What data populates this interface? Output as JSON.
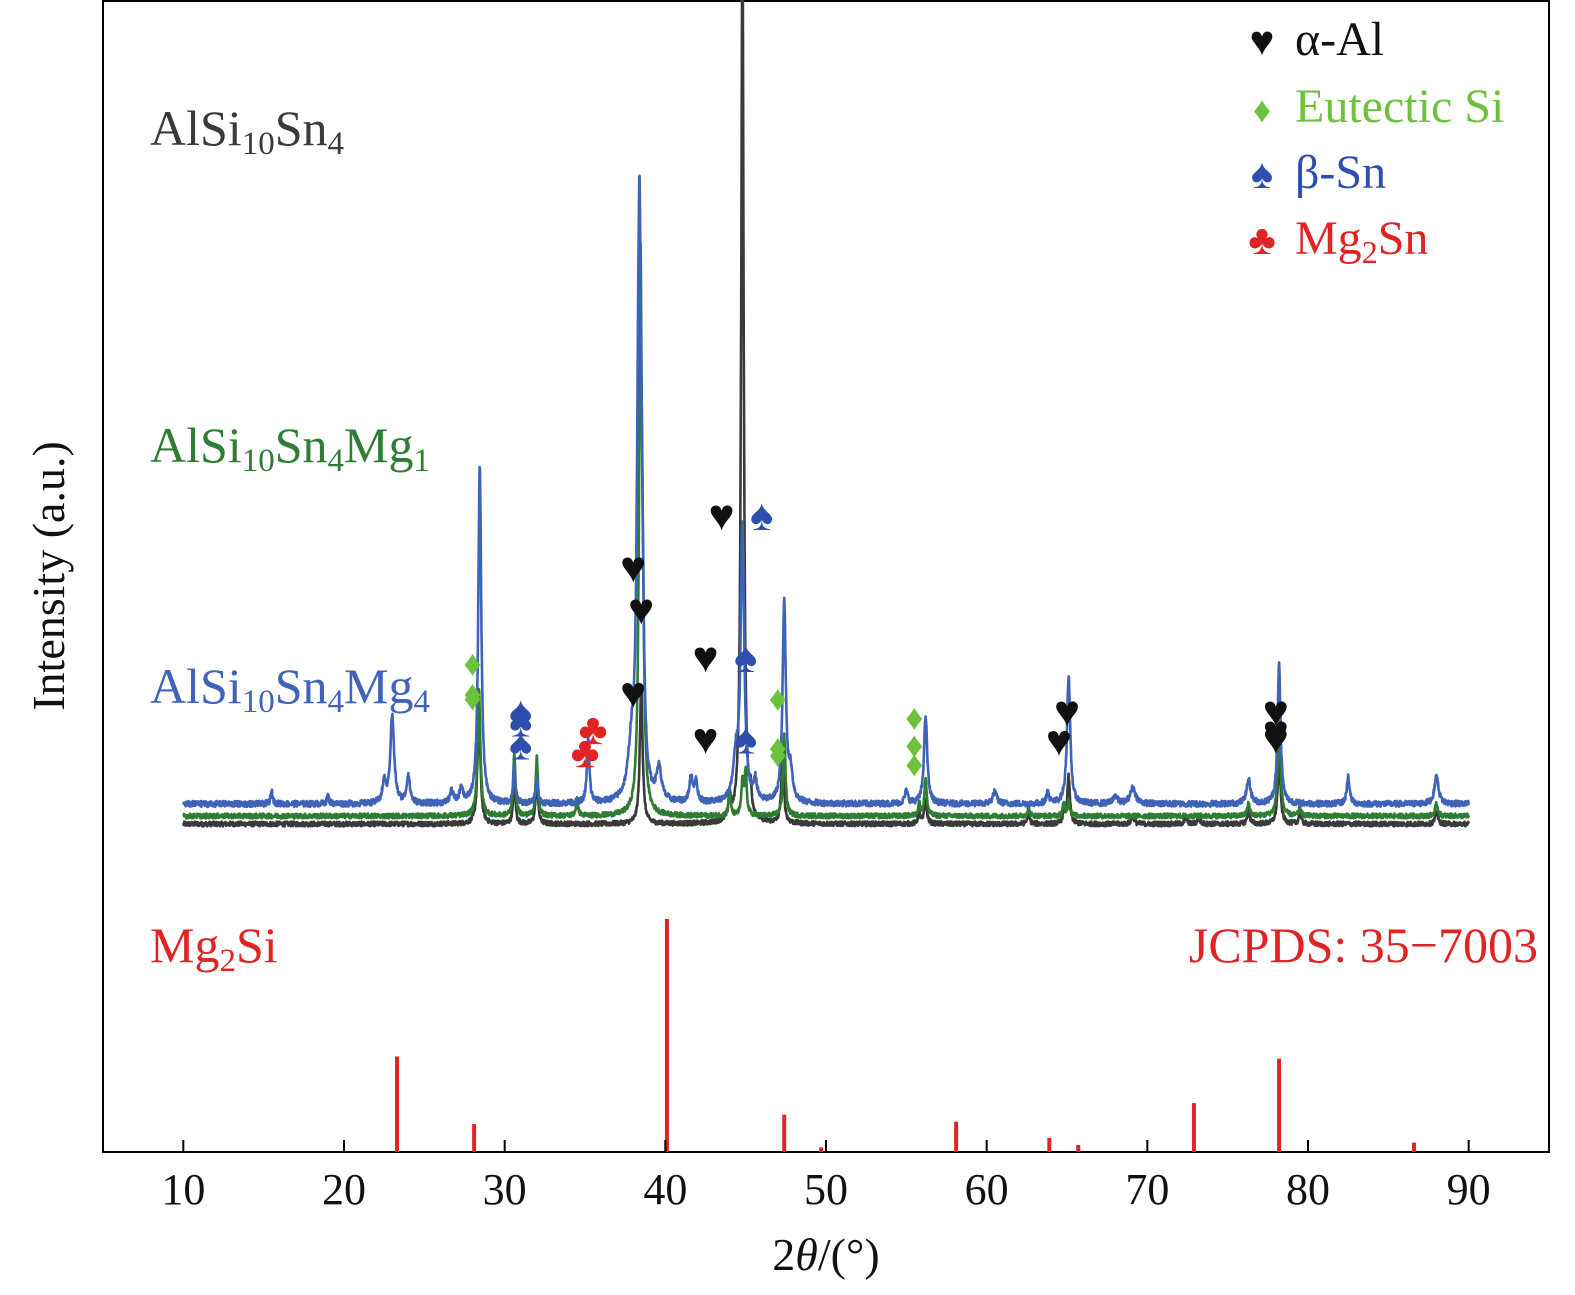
{
  "chart_data": {
    "type": "line",
    "xlabel": "2θ/(°)",
    "xlabel_parts": {
      "num": "2",
      "theta": "θ",
      "unit": "/(°)"
    },
    "ylabel": "Intensity (a.u.)",
    "xlim": [
      5,
      95
    ],
    "xticks": [
      10,
      20,
      30,
      40,
      50,
      60,
      70,
      80,
      90
    ],
    "grid": false,
    "legend": {
      "placement": "top-right",
      "entries": [
        {
          "symbol": "♥",
          "name": "heart",
          "color": "#111111",
          "label": "α-Al"
        },
        {
          "symbol": "♦",
          "name": "diamond",
          "color": "#6cc23a",
          "label": "Eutectic Si"
        },
        {
          "symbol": "♠",
          "name": "spade",
          "color": "#2e4fae",
          "label": "β-Sn"
        },
        {
          "symbol": "♣",
          "name": "club",
          "color": "#e02424",
          "label_parts": [
            "Mg",
            "2",
            "Sn"
          ],
          "label": "Mg2Sn"
        }
      ]
    },
    "series": [
      {
        "name": "AlSi10Sn4",
        "label_parts": [
          [
            "Al",
            ""
          ],
          [
            "Si",
            "10"
          ],
          [
            "Sn",
            "4"
          ]
        ],
        "color": "#3a3a3a",
        "baseline": 0.82,
        "scale": 1.0,
        "noise": 0.012,
        "peaks": [
          [
            28.4,
            0.3,
            0.1
          ],
          [
            30.6,
            0.11,
            0.08
          ],
          [
            32.0,
            0.13,
            0.08
          ],
          [
            38.5,
            0.35,
            0.1
          ],
          [
            44.0,
            0.06,
            0.08
          ],
          [
            44.7,
            0.07,
            0.07
          ],
          [
            44.8,
            2.2,
            0.09
          ],
          [
            45.3,
            0.05,
            0.08
          ],
          [
            47.3,
            0.18,
            0.09
          ],
          [
            55.8,
            0.03,
            0.08
          ],
          [
            56.2,
            0.06,
            0.09
          ],
          [
            62.6,
            0.03,
            0.08
          ],
          [
            64.8,
            0.03,
            0.08
          ],
          [
            65.1,
            0.12,
            0.09
          ],
          [
            69.1,
            0.02,
            0.1
          ],
          [
            72.4,
            0.02,
            0.08
          ],
          [
            73.2,
            0.02,
            0.08
          ],
          [
            76.3,
            0.03,
            0.1
          ],
          [
            78.2,
            0.17,
            0.1
          ],
          [
            79.5,
            0.03,
            0.08
          ],
          [
            88.0,
            0.03,
            0.1
          ]
        ],
        "markers": [
          {
            "type": "diamond",
            "x": 28.0,
            "y": 0.95
          },
          {
            "type": "spade",
            "x": 31.0,
            "y": 0.73
          },
          {
            "type": "heart",
            "x": 38.0,
            "y": 0.97
          },
          {
            "type": "heart",
            "x": 43.5,
            "y": 2.45
          },
          {
            "type": "spade",
            "x": 46.0,
            "y": 2.45
          },
          {
            "type": "diamond",
            "x": 47.0,
            "y": 0.48
          },
          {
            "type": "diamond",
            "x": 55.5,
            "y": 0.4
          },
          {
            "type": "heart",
            "x": 64.5,
            "y": 0.57
          },
          {
            "type": "heart",
            "x": 78.0,
            "y": 0.65
          }
        ]
      },
      {
        "name": "AlSi10Sn4Mg1",
        "label_parts": [
          [
            "Al",
            ""
          ],
          [
            "Si",
            "10"
          ],
          [
            "Sn",
            "4"
          ],
          [
            "Mg",
            "1"
          ]
        ],
        "color": "#2e7d32",
        "baseline": 0.84,
        "scale": 1.0,
        "noise": 0.012,
        "peaks": [
          [
            28.4,
            0.32,
            0.1
          ],
          [
            30.6,
            0.16,
            0.08
          ],
          [
            32.0,
            0.15,
            0.08
          ],
          [
            34.5,
            0.04,
            0.08
          ],
          [
            38.45,
            1.35,
            0.1
          ],
          [
            38.6,
            0.3,
            0.1
          ],
          [
            44.0,
            0.06,
            0.08
          ],
          [
            44.8,
            0.08,
            0.08
          ],
          [
            45.0,
            0.11,
            0.08
          ],
          [
            47.4,
            0.2,
            0.09
          ],
          [
            55.8,
            0.03,
            0.08
          ],
          [
            56.2,
            0.09,
            0.09
          ],
          [
            62.6,
            0.02,
            0.08
          ],
          [
            64.8,
            0.03,
            0.08
          ],
          [
            65.1,
            0.04,
            0.08
          ],
          [
            76.3,
            0.03,
            0.1
          ],
          [
            78.2,
            0.24,
            0.1
          ],
          [
            79.5,
            0.02,
            0.08
          ],
          [
            88.0,
            0.03,
            0.1
          ]
        ],
        "markers": [
          {
            "type": "diamond",
            "x": 28.0,
            "y": 0.92
          },
          {
            "type": "spade",
            "x": 31.0,
            "y": 0.74
          },
          {
            "type": "club",
            "x": 35.0,
            "y": 0.41
          },
          {
            "type": "heart",
            "x": 38.5,
            "y": 1.6
          },
          {
            "type": "heart",
            "x": 42.5,
            "y": 0.52
          },
          {
            "type": "spade",
            "x": 45.0,
            "y": 0.52
          },
          {
            "type": "diamond",
            "x": 47.0,
            "y": 0.47
          },
          {
            "type": "diamond",
            "x": 55.5,
            "y": 0.49
          },
          {
            "type": "heart",
            "x": 78.0,
            "y": 0.52
          }
        ]
      },
      {
        "name": "AlSi10Sn4Mg4",
        "label_parts": [
          [
            "Al",
            ""
          ],
          [
            "Si",
            "10"
          ],
          [
            "Sn",
            "4"
          ],
          [
            "Mg",
            "4"
          ]
        ],
        "color": "#3f63b8",
        "baseline": 0.87,
        "scale": 1.0,
        "noise": 0.015,
        "peaks": [
          [
            15.5,
            0.03,
            0.08
          ],
          [
            19.0,
            0.02,
            0.08
          ],
          [
            22.5,
            0.05,
            0.12
          ],
          [
            23.0,
            0.22,
            0.14
          ],
          [
            24.0,
            0.07,
            0.12
          ],
          [
            26.7,
            0.03,
            0.12
          ],
          [
            27.3,
            0.04,
            0.12
          ],
          [
            28.45,
            0.85,
            0.11
          ],
          [
            30.6,
            0.09,
            0.08
          ],
          [
            32.0,
            0.07,
            0.08
          ],
          [
            35.2,
            0.16,
            0.09
          ],
          [
            37.9,
            0.12,
            0.25
          ],
          [
            38.3,
            0.6,
            0.12
          ],
          [
            38.4,
            1.0,
            0.1
          ],
          [
            38.55,
            0.5,
            0.12
          ],
          [
            39.6,
            0.08,
            0.18
          ],
          [
            41.6,
            0.06,
            0.12
          ],
          [
            41.9,
            0.05,
            0.12
          ],
          [
            44.8,
            0.68,
            0.13
          ],
          [
            44.4,
            0.1,
            0.2
          ],
          [
            45.6,
            0.05,
            0.12
          ],
          [
            47.4,
            0.5,
            0.12
          ],
          [
            47.8,
            0.07,
            0.15
          ],
          [
            55.0,
            0.03,
            0.12
          ],
          [
            56.2,
            0.22,
            0.12
          ],
          [
            60.5,
            0.03,
            0.15
          ],
          [
            63.8,
            0.03,
            0.1
          ],
          [
            65.1,
            0.32,
            0.12
          ],
          [
            68.0,
            0.02,
            0.15
          ],
          [
            69.1,
            0.04,
            0.2
          ],
          [
            76.3,
            0.06,
            0.15
          ],
          [
            78.2,
            0.35,
            0.11
          ],
          [
            82.5,
            0.07,
            0.1
          ],
          [
            88.0,
            0.07,
            0.15
          ]
        ],
        "markers": [
          {
            "type": "diamond",
            "x": 28.0,
            "y": 1.07
          },
          {
            "type": "spade",
            "x": 31.0,
            "y": 0.37
          },
          {
            "type": "club",
            "x": 35.5,
            "y": 0.5
          },
          {
            "type": "heart",
            "x": 38.0,
            "y": 1.85
          },
          {
            "type": "heart",
            "x": 42.5,
            "y": 1.1
          },
          {
            "type": "spade",
            "x": 45.0,
            "y": 1.1
          },
          {
            "type": "diamond",
            "x": 47.0,
            "y": 0.78
          },
          {
            "type": "diamond",
            "x": 55.5,
            "y": 0.62
          },
          {
            "type": "heart",
            "x": 65.0,
            "y": 0.65
          },
          {
            "type": "heart",
            "x": 78.0,
            "y": 0.65
          }
        ]
      }
    ],
    "reference": {
      "name": "Mg2Si",
      "label_parts": [
        [
          "Mg",
          "2"
        ],
        [
          "Si",
          ""
        ]
      ],
      "card": "JCPDS: 35−7003",
      "color": "#e02424",
      "max_value": 100,
      "lines": [
        {
          "x": 23.3,
          "value": 41
        },
        {
          "x": 28.1,
          "value": 12
        },
        {
          "x": 40.1,
          "value": 100
        },
        {
          "x": 47.4,
          "value": 16
        },
        {
          "x": 49.7,
          "value": 2
        },
        {
          "x": 58.1,
          "value": 13
        },
        {
          "x": 63.9,
          "value": 6
        },
        {
          "x": 65.7,
          "value": 3
        },
        {
          "x": 72.9,
          "value": 21
        },
        {
          "x": 78.2,
          "value": 40
        },
        {
          "x": 86.6,
          "value": 4
        }
      ]
    }
  }
}
